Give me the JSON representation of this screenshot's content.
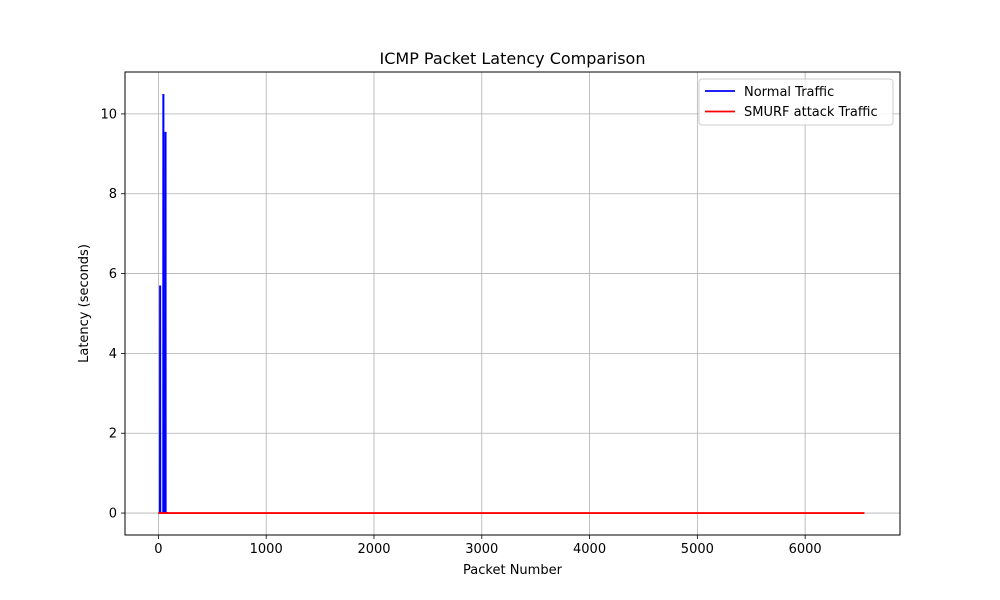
{
  "chart_data": {
    "type": "line",
    "title": "ICMP Packet Latency Comparison",
    "xlabel": "Packet Number",
    "ylabel": "Latency (seconds)",
    "xlim": [
      -310,
      6880
    ],
    "ylim": [
      -0.55,
      11.05
    ],
    "xticks": [
      0,
      1000,
      2000,
      3000,
      4000,
      5000,
      6000
    ],
    "yticks": [
      0,
      2,
      4,
      6,
      8,
      10
    ],
    "grid": true,
    "legend_position": "upper right",
    "series": [
      {
        "name": "Normal Traffic",
        "color": "#0000ff",
        "x": [
          0,
          5,
          10,
          14,
          15,
          16,
          17,
          18,
          20,
          25,
          30,
          35,
          40,
          44,
          45,
          46,
          47,
          48,
          50,
          55,
          60,
          64,
          65,
          66,
          67,
          68,
          70,
          75,
          80,
          85,
          90
        ],
        "y": [
          0,
          0,
          0,
          0,
          5.7,
          0,
          5.7,
          0,
          0,
          0,
          0,
          0,
          0,
          0,
          10.5,
          0,
          10.5,
          0,
          0,
          0,
          0,
          0,
          9.55,
          0,
          9.55,
          0,
          0,
          0,
          0,
          0,
          0
        ]
      },
      {
        "name": "SMURF attack Traffic",
        "color": "#ff0000",
        "x": [
          0,
          500,
          1000,
          1500,
          2000,
          2500,
          3000,
          3500,
          4000,
          4500,
          5000,
          5500,
          6000,
          6550
        ],
        "y": [
          0,
          0,
          0,
          0,
          0,
          0,
          0,
          0,
          0,
          0,
          0,
          0,
          0,
          0
        ]
      }
    ]
  }
}
